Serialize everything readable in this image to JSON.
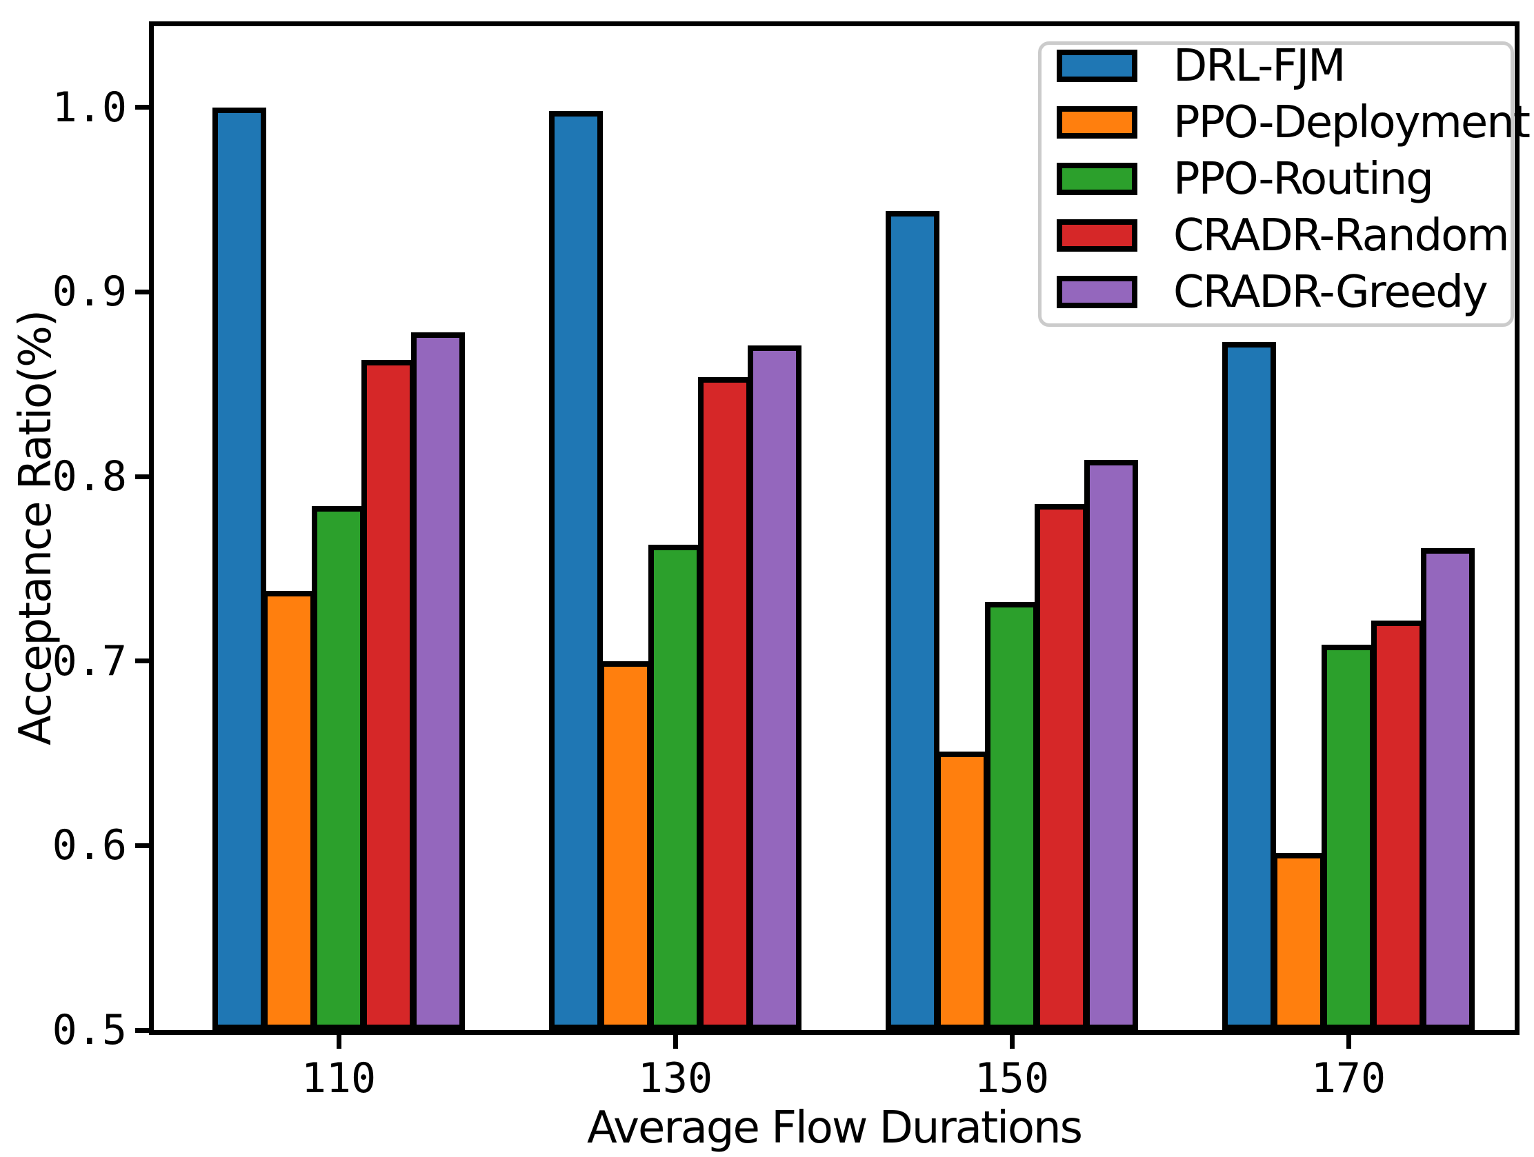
{
  "chart_data": {
    "type": "bar",
    "title": "",
    "xlabel": "Average Flow Durations",
    "ylabel": "Acceptance Ratio(%)",
    "categories": [
      "110",
      "130",
      "150",
      "170"
    ],
    "series": [
      {
        "name": "DRL-FJM",
        "color": "#1f77b4",
        "values": [
          1.0,
          0.998,
          0.944,
          0.873
        ]
      },
      {
        "name": "PPO-Deployment",
        "color": "#ff7f0e",
        "values": [
          0.738,
          0.7,
          0.651,
          0.596
        ]
      },
      {
        "name": "PPO-Routing",
        "color": "#2ca02c",
        "values": [
          0.784,
          0.763,
          0.732,
          0.709
        ]
      },
      {
        "name": "CRADR-Random",
        "color": "#d62728",
        "values": [
          0.863,
          0.854,
          0.785,
          0.722
        ]
      },
      {
        "name": "CRADR-Greedy",
        "color": "#9467bd",
        "values": [
          0.878,
          0.871,
          0.809,
          0.761
        ]
      }
    ],
    "ylim": [
      0.5,
      1.044
    ],
    "yticks": [
      "0.5",
      "0.6",
      "0.7",
      "0.8",
      "0.9",
      "1.0"
    ],
    "grid": false,
    "legend_position": "upper right",
    "bar_edge_color": "#000000",
    "legend_border_color": "#cbcbcb"
  }
}
